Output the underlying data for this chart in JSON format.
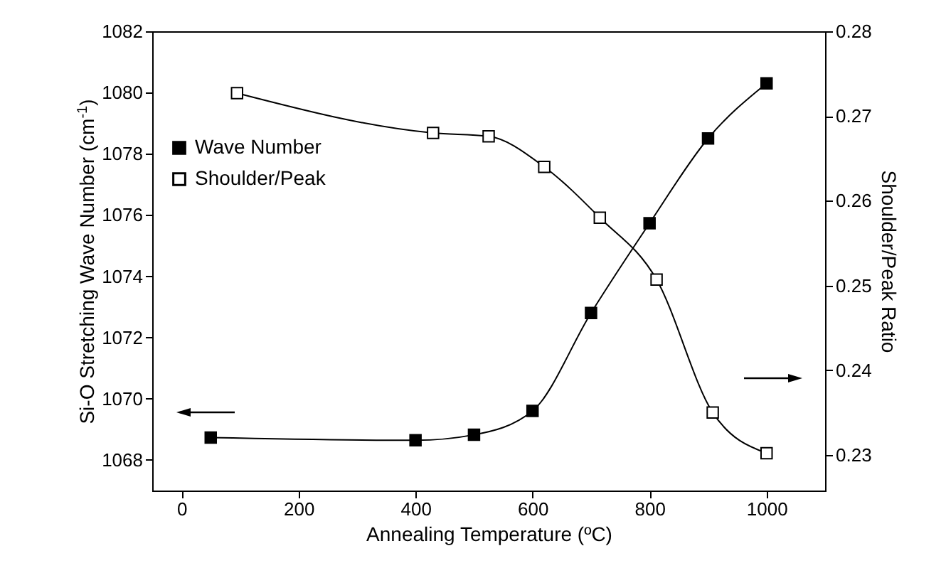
{
  "chart_data": {
    "type": "line",
    "xlabel": "Annealing Temperature (ºC)",
    "ylabel": "Si-O Stretching Wave Number (cm$^{-1}$)",
    "y2label": "Shoulder/Peak Ratio",
    "series": [
      {
        "name": "Wave Number",
        "color": "#000000",
        "x": [
          50,
          400,
          500,
          600,
          700,
          800,
          900,
          1000
        ],
        "values": [
          1068.73,
          1068.64,
          1068.82,
          1069.6,
          1072.8,
          1075.73,
          1078.5,
          1080.3
        ]
      },
      {
        "name": "Shoulder/Peak",
        "color": "#000000",
        "axis": "y2",
        "x": [
          95,
          430,
          525,
          620,
          715,
          812,
          908,
          1000
        ],
        "values": [
          0.2727,
          0.268,
          0.2676,
          0.264,
          0.258,
          0.2507,
          0.235,
          0.2302
        ]
      }
    ],
    "xlim": [
      -50,
      1100
    ],
    "xticks": [
      0,
      200,
      400,
      600,
      800,
      1000
    ],
    "ylim": [
      1067,
      1082
    ],
    "yticks": [
      1068,
      1070,
      1072,
      1074,
      1076,
      1078,
      1080,
      1082
    ],
    "y2lim": [
      0.2258,
      0.28
    ],
    "y2ticks": [
      0.23,
      0.24,
      0.25,
      0.26,
      0.27,
      0.28
    ],
    "marker": "square",
    "legend": "top left",
    "grid": false
  }
}
